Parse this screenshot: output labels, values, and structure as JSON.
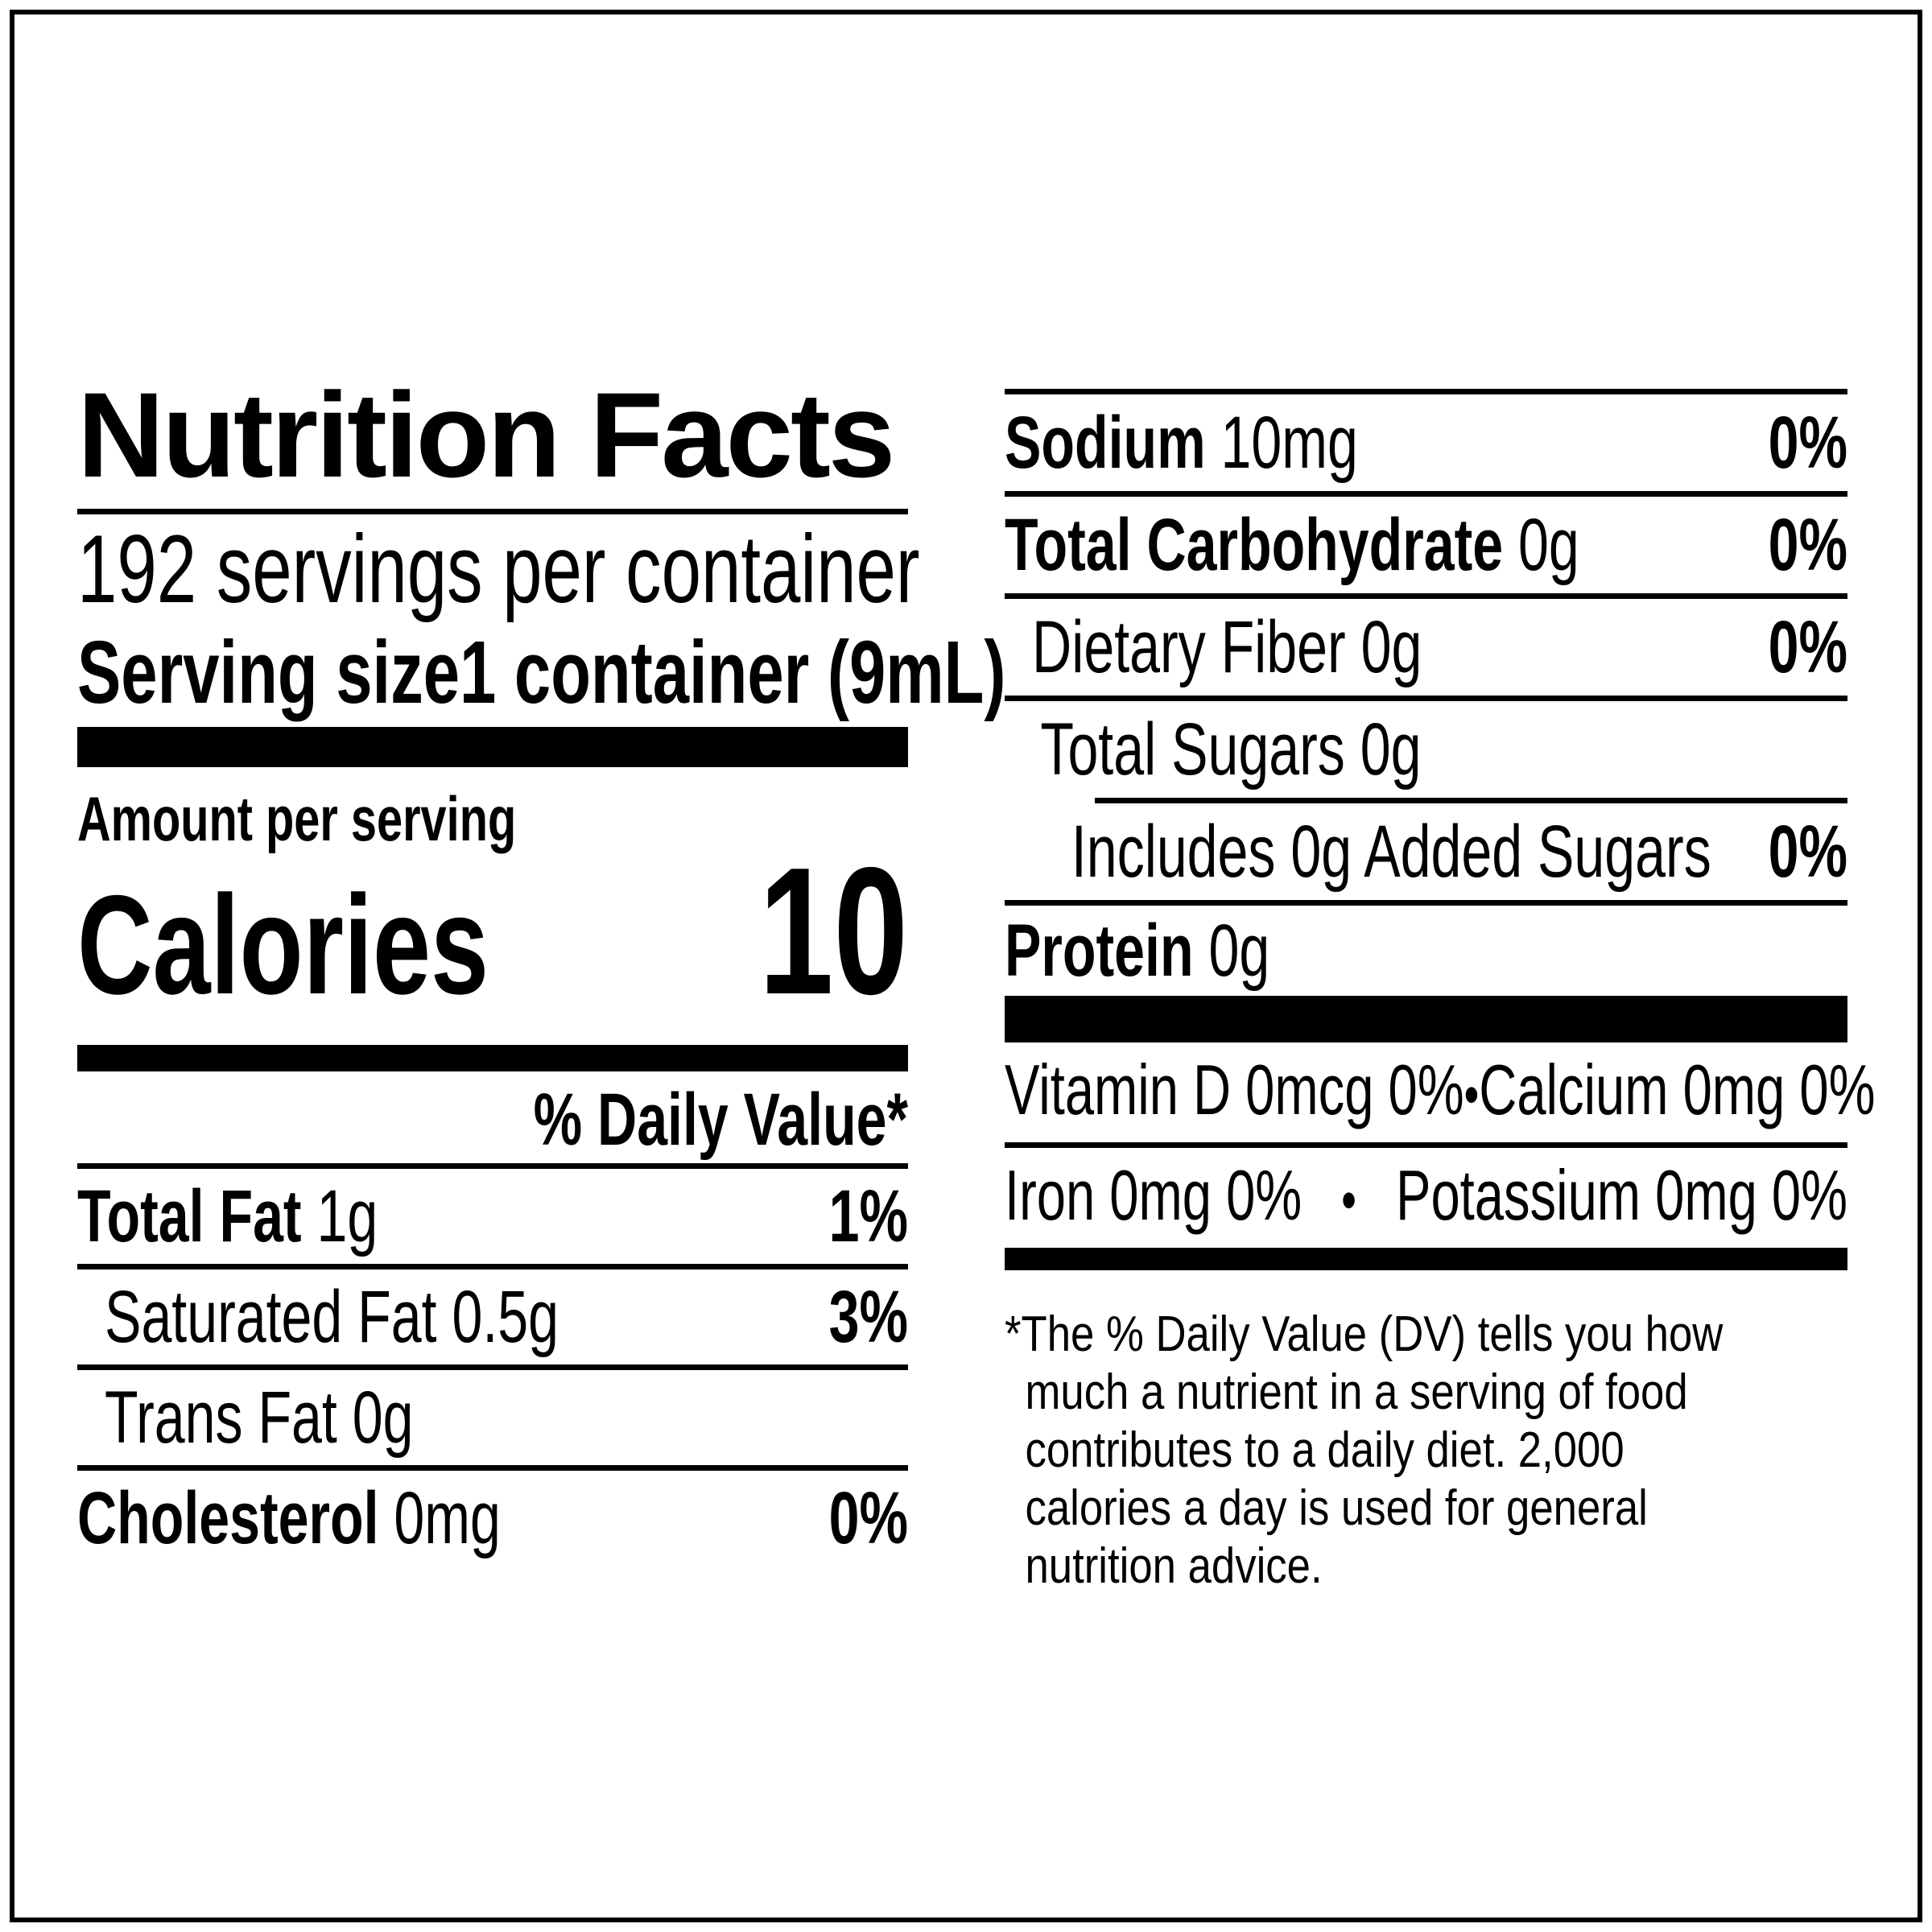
{
  "label": {
    "title": "Nutrition Facts",
    "servings_per_container": "192 servings per container",
    "serving_size": {
      "label": "Serving size",
      "value": "1 container (9mL)"
    },
    "amount_per_serving": "Amount per serving",
    "calories": {
      "label": "Calories",
      "value": "10"
    },
    "daily_value_header": "% Daily Value*",
    "left_rows": [
      {
        "name": "Total Fat",
        "amount": "1g",
        "dv": "1%"
      },
      {
        "name": "Saturated Fat",
        "amount": "0.5g",
        "dv": "3%"
      },
      {
        "name": "Trans Fat",
        "amount": "0g",
        "dv": ""
      },
      {
        "name": "Cholesterol",
        "amount": "0mg",
        "dv": "0%"
      }
    ],
    "right_rows": [
      {
        "name": "Sodium",
        "amount": "10mg",
        "dv": "0%"
      },
      {
        "name": "Total Carbohydrate",
        "amount": "0g",
        "dv": "0%"
      },
      {
        "name": "Dietary Fiber",
        "amount": "0g",
        "dv": "0%"
      },
      {
        "name": "Total Sugars",
        "amount": "0g",
        "dv": ""
      },
      {
        "name": "Includes 0g Added Sugars",
        "amount": "",
        "dv": "0%"
      },
      {
        "name": "Protein",
        "amount": "0g",
        "dv": ""
      }
    ],
    "vitamins": {
      "separator": "•",
      "row1_left": "Vitamin D 0mcg 0%",
      "row1_right": "Calcium 0mg 0%",
      "row2_left": "Iron 0mg 0%",
      "row2_right": "Potassium 0mg 0%"
    },
    "footnote": "*The % Daily Value (DV) tells you how\nmuch a nutrient in a serving of food\ncontributes to a daily diet. 2,000\ncalories a day is used for general\nnutrition advice.",
    "colors": {
      "text": "#000000",
      "background": "#ffffff"
    }
  }
}
